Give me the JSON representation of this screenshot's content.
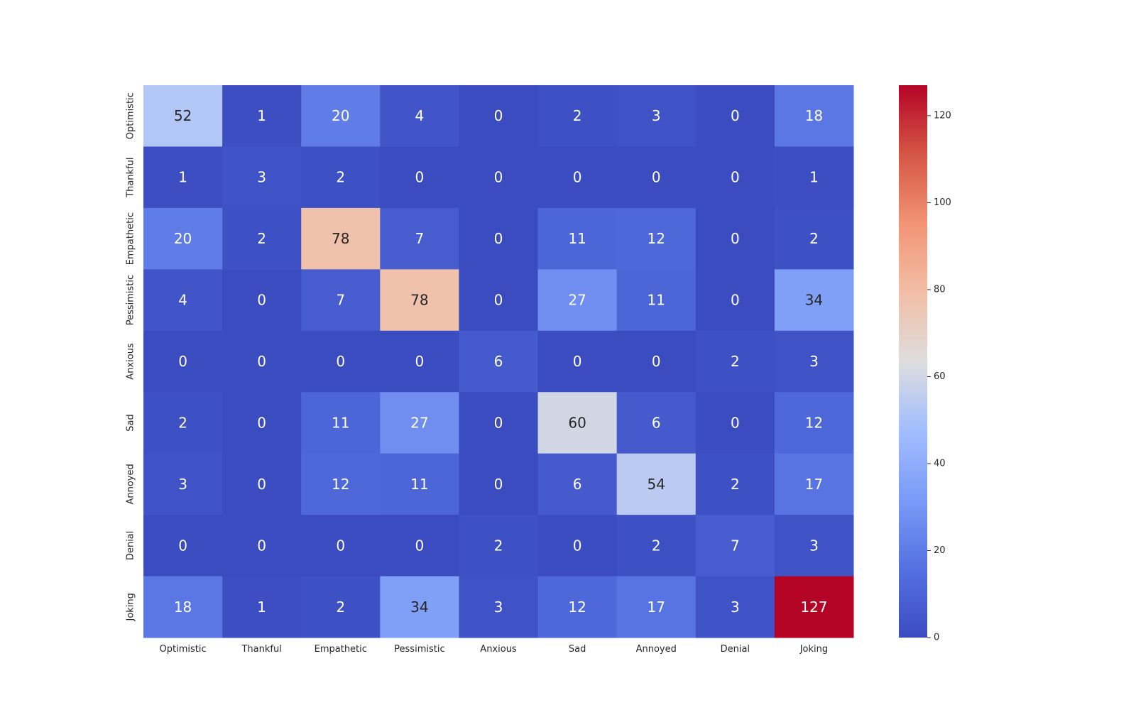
{
  "chart_data": {
    "type": "heatmap",
    "title": "",
    "xlabel": "",
    "ylabel": "",
    "x_categories": [
      "Optimistic",
      "Thankful",
      "Empathetic",
      "Pessimistic",
      "Anxious",
      "Sad",
      "Annoyed",
      "Denial",
      "Joking"
    ],
    "y_categories": [
      "Optimistic",
      "Thankful",
      "Empathetic",
      "Pessimistic",
      "Anxious",
      "Sad",
      "Annoyed",
      "Denial",
      "Joking"
    ],
    "values": [
      [
        52,
        1,
        20,
        4,
        0,
        2,
        3,
        0,
        18
      ],
      [
        1,
        3,
        2,
        0,
        0,
        0,
        0,
        0,
        1
      ],
      [
        20,
        2,
        78,
        7,
        0,
        11,
        12,
        0,
        2
      ],
      [
        4,
        0,
        7,
        78,
        0,
        27,
        11,
        0,
        34
      ],
      [
        0,
        0,
        0,
        0,
        6,
        0,
        0,
        2,
        3
      ],
      [
        2,
        0,
        11,
        27,
        0,
        60,
        6,
        0,
        12
      ],
      [
        3,
        0,
        12,
        11,
        0,
        6,
        54,
        2,
        17
      ],
      [
        0,
        0,
        0,
        0,
        2,
        0,
        2,
        7,
        3
      ],
      [
        18,
        1,
        2,
        34,
        3,
        12,
        17,
        3,
        127
      ]
    ],
    "annotated": true,
    "colormap": "coolwarm",
    "vmin": 0,
    "vmax": 127,
    "colorbar_ticks": [
      0,
      20,
      40,
      60,
      80,
      100,
      120
    ],
    "grid": false,
    "colorbar_position": "right"
  }
}
